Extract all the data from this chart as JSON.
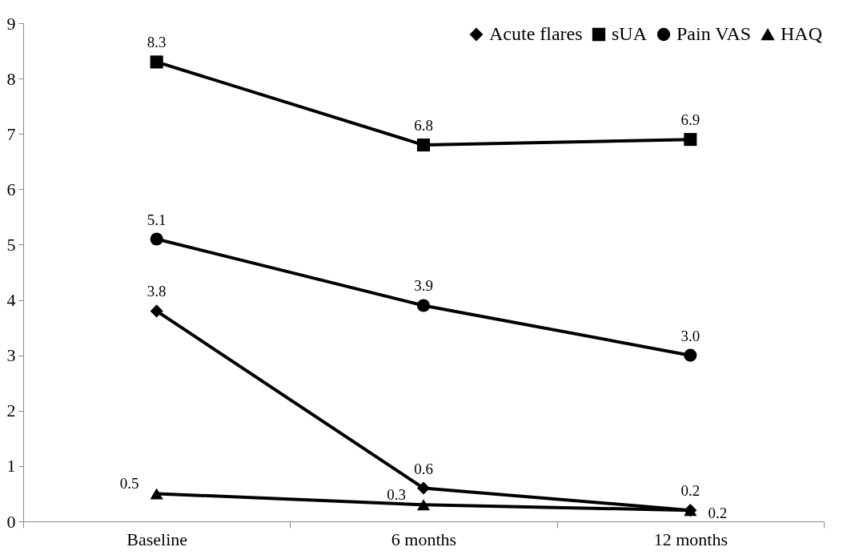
{
  "chart_data": {
    "type": "line",
    "categories": [
      "Baseline",
      "6 months",
      "12 months"
    ],
    "series": [
      {
        "name": "Acute flares",
        "color": "#000000",
        "marker": "diamond",
        "values": [
          3.8,
          0.6,
          0.2
        ],
        "value_labels": [
          "3.8",
          "0.6",
          "0.2"
        ]
      },
      {
        "name": "sUA",
        "color": "#000000",
        "marker": "square",
        "values": [
          8.3,
          6.8,
          6.9
        ],
        "value_labels": [
          "8.3",
          "6.8",
          "6.9"
        ]
      },
      {
        "name": "Pain VAS",
        "color": "#000000",
        "marker": "circle",
        "values": [
          5.1,
          3.9,
          3.0
        ],
        "value_labels": [
          "5.1",
          "3.9",
          "3.0"
        ]
      },
      {
        "name": "HAQ",
        "color": "#000000",
        "marker": "triangle",
        "values": [
          0.5,
          0.3,
          0.2
        ],
        "value_labels": [
          "0.5",
          "0.3",
          "0.2"
        ]
      }
    ],
    "ylim": [
      0,
      9
    ],
    "yticks": [
      0,
      1,
      2,
      3,
      4,
      5,
      6,
      7,
      8,
      9
    ],
    "grid": false,
    "legend": "top right",
    "line_style": "solid"
  }
}
